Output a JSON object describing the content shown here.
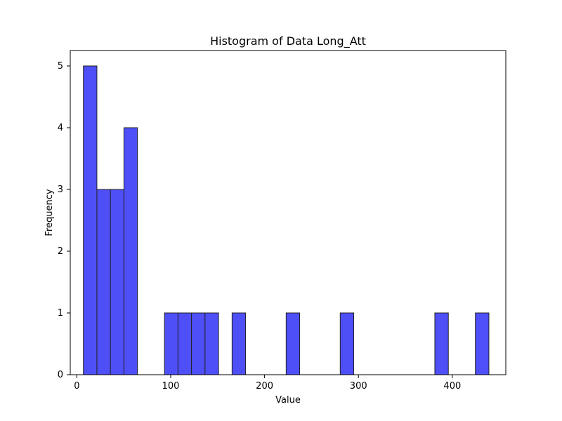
{
  "chart_data": {
    "type": "bar",
    "title": "Histogram of Data Long_Att",
    "xlabel": "Value",
    "ylabel": "Frequency",
    "xlim": [
      -7,
      457
    ],
    "ylim": [
      0,
      5.25
    ],
    "x_ticks": [
      0,
      100,
      200,
      300,
      400
    ],
    "y_ticks": [
      0,
      1,
      2,
      3,
      4,
      5
    ],
    "grid": false,
    "bins": [
      {
        "x0": 7,
        "x1": 21.4,
        "value": 5
      },
      {
        "x0": 21.4,
        "x1": 35.8,
        "value": 3
      },
      {
        "x0": 35.8,
        "x1": 50.2,
        "value": 3
      },
      {
        "x0": 50.2,
        "x1": 64.6,
        "value": 4
      },
      {
        "x0": 93.4,
        "x1": 107.8,
        "value": 1
      },
      {
        "x0": 107.8,
        "x1": 122.2,
        "value": 1
      },
      {
        "x0": 122.2,
        "x1": 136.6,
        "value": 1
      },
      {
        "x0": 136.6,
        "x1": 151.0,
        "value": 1
      },
      {
        "x0": 165.4,
        "x1": 179.8,
        "value": 1
      },
      {
        "x0": 223.0,
        "x1": 237.4,
        "value": 1
      },
      {
        "x0": 280.6,
        "x1": 295.0,
        "value": 1
      },
      {
        "x0": 381.4,
        "x1": 395.8,
        "value": 1
      },
      {
        "x0": 424.6,
        "x1": 439.0,
        "value": 1
      }
    ],
    "colors": {
      "bar_fill": "#4f4ff7",
      "bar_edge": "#222222"
    }
  }
}
